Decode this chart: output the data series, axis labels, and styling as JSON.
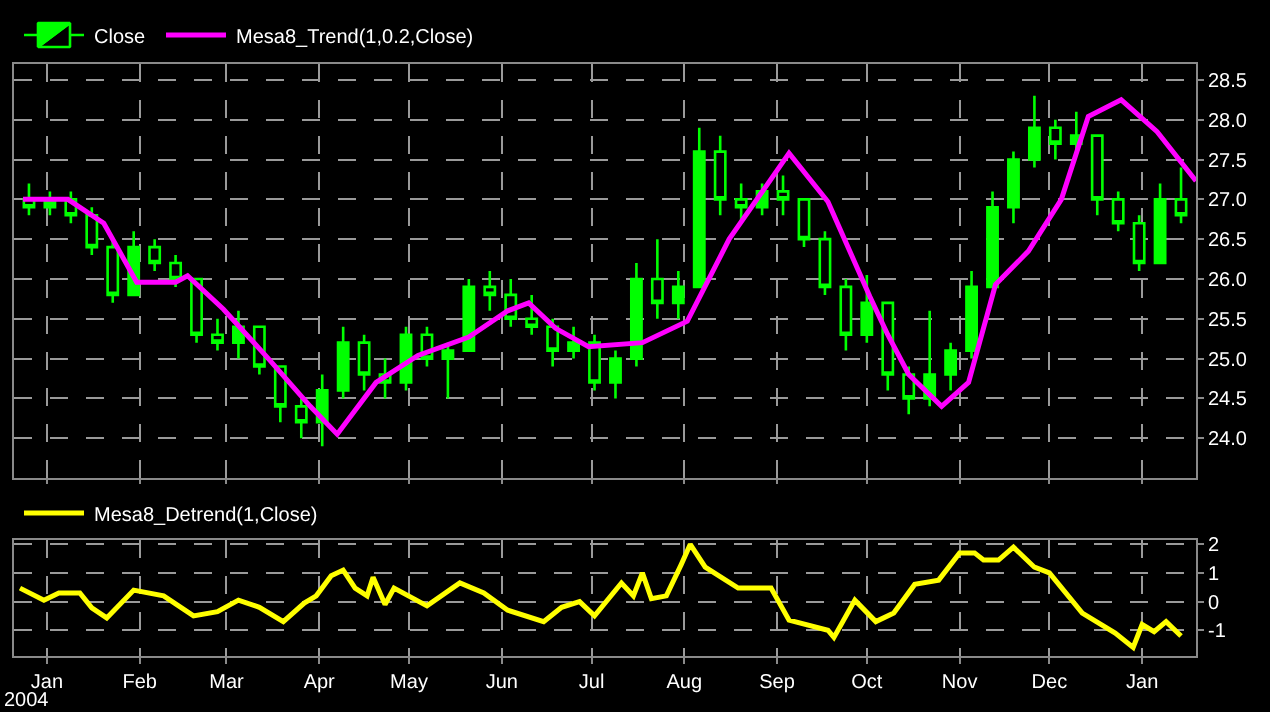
{
  "chart_data": [
    {
      "type": "candlestick",
      "xlim": [
        "2003-12-21",
        "2005-01-19"
      ],
      "ylim": [
        23.5,
        28.7
      ],
      "xticks": [
        {
          "value": "2004-01-01",
          "label": null
        },
        {
          "value": "2004-02-01",
          "label": null
        },
        {
          "value": "2004-03-01",
          "label": null
        },
        {
          "value": "2004-04-01",
          "label": null
        },
        {
          "value": "2004-05-01",
          "label": null
        },
        {
          "value": "2004-06-01",
          "label": null
        },
        {
          "value": "2004-07-01",
          "label": null
        },
        {
          "value": "2004-08-01",
          "label": null
        },
        {
          "value": "2004-09-01",
          "label": null
        },
        {
          "value": "2004-10-01",
          "label": null
        },
        {
          "value": "2004-11-01",
          "label": null
        },
        {
          "value": "2004-12-01",
          "label": null
        },
        {
          "value": "2005-01-01",
          "label": null
        }
      ],
      "yticks": [
        {
          "value": 24,
          "label": "24.0"
        },
        24.5,
        {
          "value": 25,
          "label": "25.0"
        },
        25.5,
        {
          "value": 26,
          "label": "26.0"
        },
        26.5,
        {
          "value": 27,
          "label": "27.0"
        },
        27.5,
        {
          "value": 28,
          "label": "28.0"
        },
        28.5
      ],
      "tick_labels": "y",
      "grid": true,
      "legend": "top left",
      "series": [
        {
          "name": "Close",
          "type": "candlestick",
          "color": "#00ff00",
          "x": [
            "2003-12-26",
            "2004-01-02",
            "2004-01-09",
            "2004-01-16",
            "2004-01-23",
            "2004-01-30",
            "2004-02-06",
            "2004-02-13",
            "2004-02-20",
            "2004-02-27",
            "2004-03-05",
            "2004-03-12",
            "2004-03-19",
            "2004-03-26",
            "2004-04-02",
            "2004-04-09",
            "2004-04-16",
            "2004-04-23",
            "2004-04-30",
            "2004-05-07",
            "2004-05-14",
            "2004-05-21",
            "2004-05-28",
            "2004-06-04",
            "2004-06-11",
            "2004-06-18",
            "2004-06-25",
            "2004-07-02",
            "2004-07-09",
            "2004-07-16",
            "2004-07-23",
            "2004-07-30",
            "2004-08-06",
            "2004-08-13",
            "2004-08-20",
            "2004-08-27",
            "2004-09-03",
            "2004-09-10",
            "2004-09-17",
            "2004-09-24",
            "2004-10-01",
            "2004-10-08",
            "2004-10-15",
            "2004-10-22",
            "2004-10-29",
            "2004-11-05",
            "2004-11-12",
            "2004-11-19",
            "2004-11-26",
            "2004-12-03",
            "2004-12-10",
            "2004-12-17",
            "2004-12-24",
            "2004-12-31",
            "2005-01-07",
            "2005-01-14"
          ],
          "ohlc": [
            [
              27.0,
              27.2,
              26.8,
              26.9
            ],
            [
              26.9,
              27.1,
              26.8,
              27.0
            ],
            [
              27.0,
              27.1,
              26.7,
              26.8
            ],
            [
              26.8,
              26.9,
              26.3,
              26.4
            ],
            [
              26.4,
              26.5,
              25.7,
              25.8
            ],
            [
              25.8,
              26.6,
              25.8,
              26.4
            ],
            [
              26.4,
              26.5,
              26.1,
              26.2
            ],
            [
              26.2,
              26.3,
              25.9,
              26.0
            ],
            [
              26.0,
              26.0,
              25.2,
              25.3
            ],
            [
              25.3,
              25.5,
              25.1,
              25.2
            ],
            [
              25.2,
              25.6,
              25.0,
              25.4
            ],
            [
              25.4,
              25.4,
              24.8,
              24.9
            ],
            [
              24.9,
              24.9,
              24.2,
              24.4
            ],
            [
              24.4,
              24.5,
              24.0,
              24.2
            ],
            [
              24.2,
              24.8,
              23.9,
              24.6
            ],
            [
              24.6,
              25.4,
              24.5,
              25.2
            ],
            [
              25.2,
              25.3,
              24.6,
              24.8
            ],
            [
              24.8,
              25.0,
              24.5,
              24.7
            ],
            [
              24.7,
              25.4,
              24.6,
              25.3
            ],
            [
              25.3,
              25.4,
              24.9,
              25.0
            ],
            [
              25.0,
              25.2,
              24.5,
              25.1
            ],
            [
              25.1,
              26.0,
              25.1,
              25.9
            ],
            [
              25.9,
              26.1,
              25.6,
              25.8
            ],
            [
              25.8,
              26.0,
              25.4,
              25.5
            ],
            [
              25.5,
              25.8,
              25.3,
              25.4
            ],
            [
              25.4,
              25.5,
              24.9,
              25.1
            ],
            [
              25.1,
              25.4,
              25.0,
              25.2
            ],
            [
              25.2,
              25.3,
              24.6,
              24.7
            ],
            [
              24.7,
              25.1,
              24.5,
              25.0
            ],
            [
              25.0,
              26.2,
              24.9,
              26.0
            ],
            [
              26.0,
              26.5,
              25.5,
              25.7
            ],
            [
              25.7,
              26.1,
              25.5,
              25.9
            ],
            [
              25.9,
              27.9,
              25.9,
              27.6
            ],
            [
              27.6,
              27.8,
              26.8,
              27.0
            ],
            [
              27.0,
              27.2,
              26.7,
              26.9
            ],
            [
              26.9,
              27.2,
              26.8,
              27.1
            ],
            [
              27.1,
              27.3,
              26.8,
              27.0
            ],
            [
              27.0,
              27.0,
              26.4,
              26.5
            ],
            [
              26.5,
              26.6,
              25.8,
              25.9
            ],
            [
              25.9,
              26.0,
              25.1,
              25.3
            ],
            [
              25.3,
              26.05,
              25.2,
              25.7
            ],
            [
              25.7,
              25.7,
              24.6,
              24.8
            ],
            [
              24.8,
              24.9,
              24.3,
              24.5
            ],
            [
              24.5,
              25.6,
              24.4,
              24.8
            ],
            [
              24.8,
              25.2,
              24.6,
              25.1
            ],
            [
              25.1,
              26.1,
              25.0,
              25.9
            ],
            [
              25.9,
              27.1,
              25.9,
              26.9
            ],
            [
              26.9,
              27.6,
              26.7,
              27.5
            ],
            [
              27.5,
              28.3,
              27.4,
              27.9
            ],
            [
              27.9,
              28.0,
              27.5,
              27.7
            ],
            [
              27.7,
              28.1,
              27.6,
              27.8
            ],
            [
              27.8,
              27.8,
              26.8,
              27.0
            ],
            [
              27.0,
              27.1,
              26.6,
              26.7
            ],
            [
              26.7,
              26.8,
              26.1,
              26.2
            ],
            [
              26.2,
              27.2,
              26.2,
              27.0
            ],
            [
              27.0,
              27.4,
              26.7,
              26.8
            ]
          ]
        },
        {
          "name": "Mesa8_Trend(1,0.2,Close)",
          "type": "line",
          "color": "#ff00ff",
          "x": [
            "2003-12-24",
            "2004-01-08",
            "2004-01-20",
            "2004-01-31",
            "2004-02-13",
            "2004-02-17",
            "2004-02-29",
            "2004-03-15",
            "2004-03-29",
            "2004-04-07",
            "2004-04-20",
            "2004-05-04",
            "2004-05-21",
            "2004-06-03",
            "2004-06-10",
            "2004-06-19",
            "2004-06-30",
            "2004-07-18",
            "2004-08-02",
            "2004-08-16",
            "2004-09-05",
            "2004-09-18",
            "2004-10-02",
            "2004-10-08",
            "2004-10-15",
            "2004-10-26",
            "2004-11-04",
            "2004-11-13",
            "2004-11-24",
            "2004-12-05",
            "2004-12-14",
            "2004-12-25",
            "2005-01-06",
            "2005-01-19"
          ],
          "values": [
            27.0,
            27.0,
            26.7,
            25.96,
            25.96,
            26.04,
            25.62,
            25.0,
            24.4,
            24.05,
            24.7,
            25.04,
            25.27,
            25.6,
            25.7,
            25.38,
            25.15,
            25.2,
            25.47,
            26.5,
            27.58,
            26.97,
            25.78,
            25.3,
            24.8,
            24.4,
            24.7,
            25.93,
            26.35,
            27.0,
            28.04,
            28.25,
            27.85,
            27.23
          ]
        }
      ]
    },
    {
      "type": "line",
      "xlim": [
        "2003-12-21",
        "2005-01-19"
      ],
      "ylim": [
        -1.9,
        2.15
      ],
      "xticks": [
        {
          "value": "2004-01-01",
          "label": "Jan"
        },
        {
          "value": "2004-02-01",
          "label": "Feb"
        },
        {
          "value": "2004-03-01",
          "label": "Mar"
        },
        {
          "value": "2004-04-01",
          "label": "Apr"
        },
        {
          "value": "2004-05-01",
          "label": "May"
        },
        {
          "value": "2004-06-01",
          "label": "Jun"
        },
        {
          "value": "2004-07-01",
          "label": "Jul"
        },
        {
          "value": "2004-08-01",
          "label": "Aug"
        },
        {
          "value": "2004-09-01",
          "label": "Sep"
        },
        {
          "value": "2004-10-01",
          "label": "Oct"
        },
        {
          "value": "2004-11-01",
          "label": "Nov"
        },
        {
          "value": "2004-12-01",
          "label": "Dec"
        },
        {
          "value": "2005-01-01",
          "label": "Jan"
        }
      ],
      "yticks": [
        -1,
        0,
        1,
        2
      ],
      "grid": true,
      "legend": "top left",
      "annotations": [
        "2004"
      ],
      "series": [
        {
          "name": "Mesa8_Detrend(1,Close)",
          "color": "#ffff00",
          "x": [
            "2003-12-23",
            "2003-12-31",
            "2004-01-05",
            "2004-01-12",
            "2004-01-16",
            "2004-01-21",
            "2004-01-30",
            "2004-02-09",
            "2004-02-19",
            "2004-02-27",
            "2004-03-05",
            "2004-03-12",
            "2004-03-20",
            "2004-03-27",
            "2004-03-31",
            "2004-04-05",
            "2004-04-09",
            "2004-04-13",
            "2004-04-17",
            "2004-04-19",
            "2004-04-23",
            "2004-04-26",
            "2004-05-07",
            "2004-05-18",
            "2004-05-26",
            "2004-06-03",
            "2004-06-15",
            "2004-06-21",
            "2004-06-27",
            "2004-07-02",
            "2004-07-11",
            "2004-07-15",
            "2004-07-18",
            "2004-07-21",
            "2004-07-26",
            "2004-07-31",
            "2004-08-03",
            "2004-08-08",
            "2004-08-19",
            "2004-08-30",
            "2004-09-05",
            "2004-09-18",
            "2004-09-20",
            "2004-09-27",
            "2004-10-04",
            "2004-10-10",
            "2004-10-17",
            "2004-10-25",
            "2004-11-01",
            "2004-11-06",
            "2004-11-09",
            "2004-11-14",
            "2004-11-19",
            "2004-11-26",
            "2004-12-01",
            "2004-12-12",
            "2004-12-23",
            "2004-12-29",
            "2005-01-01",
            "2005-01-05",
            "2005-01-09",
            "2005-01-14"
          ],
          "values": [
            0.47,
            0.05,
            0.3,
            0.3,
            -0.22,
            -0.57,
            0.4,
            0.2,
            -0.5,
            -0.35,
            0.05,
            -0.2,
            -0.7,
            -0.05,
            0.2,
            0.9,
            1.1,
            0.47,
            0.2,
            0.85,
            -0.1,
            0.47,
            -0.15,
            0.65,
            0.3,
            -0.3,
            -0.7,
            -0.2,
            0,
            -0.5,
            0.65,
            0.2,
            1.0,
            0.1,
            0.2,
            1.3,
            2.0,
            1.2,
            0.47,
            0.47,
            -0.65,
            -1.0,
            -1.25,
            0.05,
            -0.7,
            -0.4,
            0.6,
            0.75,
            1.7,
            1.7,
            1.45,
            1.45,
            1.9,
            1.2,
            1.0,
            -0.4,
            -1.1,
            -1.6,
            -0.8,
            -1.05,
            -0.7,
            -1.2
          ]
        }
      ]
    }
  ]
}
